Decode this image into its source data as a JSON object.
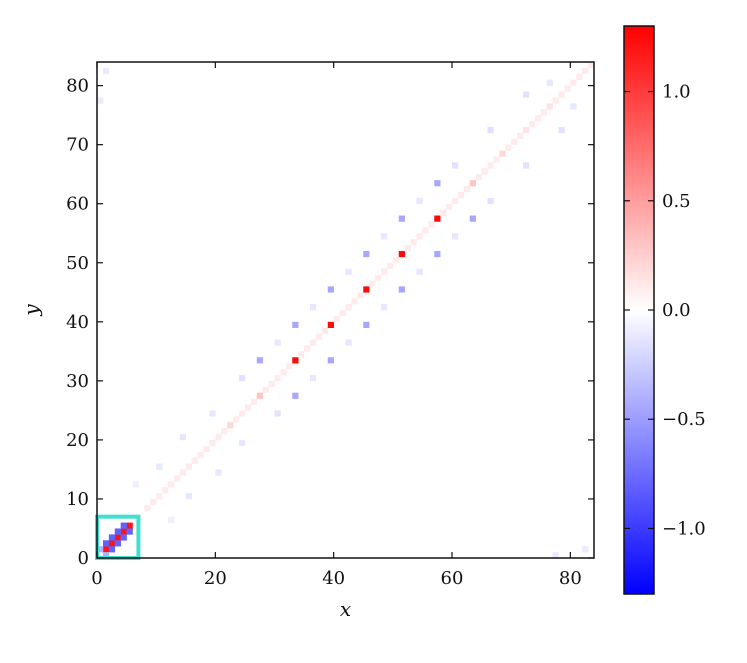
{
  "chart_data": {
    "type": "heatmap",
    "title": "",
    "xlabel": "x",
    "ylabel": "y",
    "xlim": [
      0,
      84
    ],
    "ylim": [
      0,
      84
    ],
    "xticks": [
      0,
      20,
      40,
      60,
      80
    ],
    "yticks": [
      0,
      10,
      20,
      30,
      40,
      50,
      60,
      70,
      80
    ],
    "xtick_labels": [
      "0",
      "20",
      "40",
      "60",
      "80"
    ],
    "ytick_labels": [
      "0",
      "10",
      "20",
      "30",
      "40",
      "50",
      "60",
      "70",
      "80"
    ],
    "colormap": "bwr",
    "color_limits": [
      -1.3,
      1.3
    ],
    "colorbar_ticks": [
      1.0,
      0.5,
      0.0,
      -0.5,
      -1.0
    ],
    "colorbar_tick_labels": [
      "1.0",
      "0.5",
      "0.0",
      "−0.5",
      "−1.0"
    ],
    "colors": {
      "low": "#0000ff",
      "mid": "#ffffff",
      "high": "#ff0000",
      "highlight": "#40e0d0"
    },
    "grid": false,
    "highlight_box": {
      "x_range": [
        0,
        7
      ],
      "y_range": [
        0,
        7
      ]
    },
    "diagonal_value_default": 0.1,
    "strong_cells": [
      {
        "x": 1,
        "y": 1,
        "value": 1.2
      },
      {
        "x": 2,
        "y": 2,
        "value": 1.2
      },
      {
        "x": 3,
        "y": 3,
        "value": 1.2
      },
      {
        "x": 4,
        "y": 4,
        "value": 1.2
      },
      {
        "x": 5,
        "y": 5,
        "value": 1.2
      },
      {
        "x": 1,
        "y": 2,
        "value": -0.8
      },
      {
        "x": 2,
        "y": 1,
        "value": -0.8
      },
      {
        "x": 2,
        "y": 3,
        "value": -0.8
      },
      {
        "x": 3,
        "y": 2,
        "value": -0.8
      },
      {
        "x": 3,
        "y": 4,
        "value": -0.8
      },
      {
        "x": 4,
        "y": 3,
        "value": -0.8
      },
      {
        "x": 4,
        "y": 5,
        "value": -0.8
      },
      {
        "x": 5,
        "y": 4,
        "value": -0.8
      },
      {
        "x": 0,
        "y": 1,
        "value": -0.4
      },
      {
        "x": 1,
        "y": 0,
        "value": -0.4
      },
      {
        "x": 33,
        "y": 33,
        "value": 1.25
      },
      {
        "x": 39,
        "y": 39,
        "value": 1.25
      },
      {
        "x": 45,
        "y": 45,
        "value": 1.25
      },
      {
        "x": 51,
        "y": 51,
        "value": 1.25
      },
      {
        "x": 57,
        "y": 57,
        "value": 1.25
      },
      {
        "x": 27,
        "y": 33,
        "value": -0.45
      },
      {
        "x": 33,
        "y": 27,
        "value": -0.45
      },
      {
        "x": 33,
        "y": 39,
        "value": -0.45
      },
      {
        "x": 39,
        "y": 33,
        "value": -0.45
      },
      {
        "x": 39,
        "y": 45,
        "value": -0.45
      },
      {
        "x": 45,
        "y": 39,
        "value": -0.45
      },
      {
        "x": 45,
        "y": 51,
        "value": -0.45
      },
      {
        "x": 51,
        "y": 45,
        "value": -0.45
      },
      {
        "x": 51,
        "y": 57,
        "value": -0.45
      },
      {
        "x": 57,
        "y": 51,
        "value": -0.45
      },
      {
        "x": 57,
        "y": 63,
        "value": -0.45
      },
      {
        "x": 63,
        "y": 57,
        "value": -0.45
      },
      {
        "x": 27,
        "y": 27,
        "value": 0.3
      },
      {
        "x": 63,
        "y": 63,
        "value": 0.3
      },
      {
        "x": 22,
        "y": 22,
        "value": 0.2
      },
      {
        "x": 68,
        "y": 68,
        "value": 0.2
      },
      {
        "x": 72,
        "y": 72,
        "value": 0.15
      },
      {
        "x": 76,
        "y": 76,
        "value": 0.15
      },
      {
        "x": 81,
        "y": 81,
        "value": 0.1
      }
    ],
    "offdiagonal_faint_cells": [
      {
        "x": 15,
        "y": 10,
        "value": -0.12
      },
      {
        "x": 10,
        "y": 15,
        "value": -0.12
      },
      {
        "x": 20,
        "y": 14,
        "value": -0.12
      },
      {
        "x": 14,
        "y": 20,
        "value": -0.12
      },
      {
        "x": 24,
        "y": 19,
        "value": -0.12
      },
      {
        "x": 19,
        "y": 24,
        "value": -0.12
      },
      {
        "x": 30,
        "y": 24,
        "value": -0.15
      },
      {
        "x": 24,
        "y": 30,
        "value": -0.15
      },
      {
        "x": 36,
        "y": 30,
        "value": -0.12
      },
      {
        "x": 30,
        "y": 36,
        "value": -0.12
      },
      {
        "x": 42,
        "y": 36,
        "value": -0.12
      },
      {
        "x": 36,
        "y": 42,
        "value": -0.12
      },
      {
        "x": 48,
        "y": 42,
        "value": -0.12
      },
      {
        "x": 42,
        "y": 48,
        "value": -0.12
      },
      {
        "x": 54,
        "y": 48,
        "value": -0.12
      },
      {
        "x": 48,
        "y": 54,
        "value": -0.12
      },
      {
        "x": 60,
        "y": 54,
        "value": -0.12
      },
      {
        "x": 54,
        "y": 60,
        "value": -0.12
      },
      {
        "x": 66,
        "y": 60,
        "value": -0.15
      },
      {
        "x": 60,
        "y": 66,
        "value": -0.15
      },
      {
        "x": 72,
        "y": 66,
        "value": -0.15
      },
      {
        "x": 66,
        "y": 72,
        "value": -0.15
      },
      {
        "x": 78,
        "y": 72,
        "value": -0.15
      },
      {
        "x": 72,
        "y": 78,
        "value": -0.15
      },
      {
        "x": 80,
        "y": 76,
        "value": -0.12
      },
      {
        "x": 76,
        "y": 80,
        "value": -0.12
      },
      {
        "x": 0,
        "y": 77,
        "value": -0.1
      },
      {
        "x": 77,
        "y": 0,
        "value": -0.1
      },
      {
        "x": 82,
        "y": 1,
        "value": -0.1
      },
      {
        "x": 1,
        "y": 82,
        "value": -0.1
      },
      {
        "x": 12,
        "y": 6,
        "value": -0.08
      },
      {
        "x": 6,
        "y": 12,
        "value": -0.08
      }
    ]
  }
}
